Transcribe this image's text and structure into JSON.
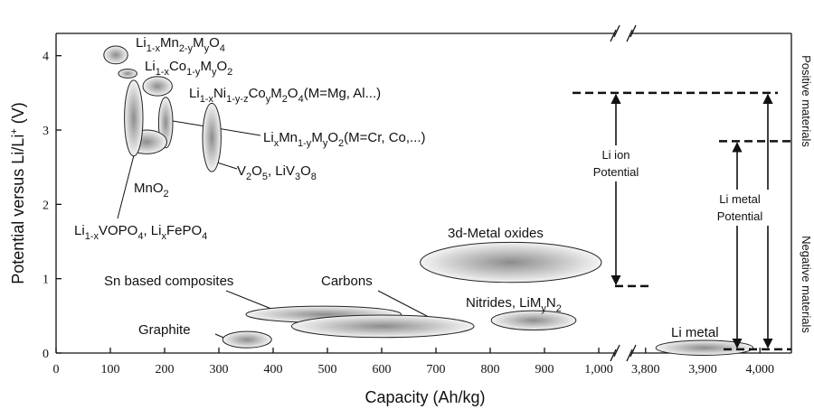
{
  "chart_data": {
    "type": "region-ellipse",
    "x_label": "Capacity (Ah/kg)",
    "y_label": [
      {
        "text": "Potential versus Li/Li"
      },
      {
        "sup": "+"
      },
      {
        "text": " (V)"
      }
    ],
    "side_labels": [
      "Positive materials",
      "Negative materials"
    ],
    "ylim": [
      0,
      4.3
    ],
    "yticks": [
      0,
      1,
      2,
      3,
      4
    ],
    "x_segments": [
      {
        "xlim": [
          0,
          1030
        ],
        "xticks": [
          0,
          100,
          200,
          300,
          400,
          500,
          600,
          700,
          800,
          900,
          {
            "value": 1000,
            "label": "1,000"
          }
        ]
      },
      {
        "xlim": [
          3775,
          4055
        ],
        "xticks": [
          {
            "value": 3800,
            "label": "3,800"
          },
          {
            "value": 3900,
            "label": "3,900"
          },
          {
            "value": 4000,
            "label": "4,000"
          }
        ]
      }
    ],
    "regions": [
      {
        "label": [
          {
            "text": "Li"
          },
          {
            "sub": "1-x"
          },
          {
            "text": "Mn"
          },
          {
            "sub": "2-y"
          },
          {
            "text": "M"
          },
          {
            "sub": "y"
          },
          {
            "text": "O"
          },
          {
            "sub": "4"
          }
        ],
        "x": 110,
        "y": 4.01,
        "x_width": 22,
        "y_height": 0.12
      },
      {
        "label": [
          {
            "text": "Li"
          },
          {
            "sub": "1-x"
          },
          {
            "text": "Co"
          },
          {
            "sub": "1-y"
          },
          {
            "text": "M"
          },
          {
            "sub": "y"
          },
          {
            "text": "O"
          },
          {
            "sub": "2"
          }
        ],
        "x": 132,
        "y": 3.76,
        "x_width": 17,
        "y_height": 0.06
      },
      {
        "label": [
          {
            "text": "Li"
          },
          {
            "sub": "1-x"
          },
          {
            "text": "Ni"
          },
          {
            "sub": "1-y-z"
          },
          {
            "text": "Co"
          },
          {
            "sub": "y"
          },
          {
            "text": "M"
          },
          {
            "sub": "2"
          },
          {
            "text": "O"
          },
          {
            "sub": "4"
          },
          {
            "text": "(M=Mg, Al...)"
          }
        ],
        "x": 187,
        "y": 3.59,
        "x_width": 27,
        "y_height": 0.13
      },
      {
        "label": [
          {
            "text": "Li"
          },
          {
            "sub": "x"
          },
          {
            "text": "Mn"
          },
          {
            "sub": "1-y"
          },
          {
            "text": "M"
          },
          {
            "sub": "y"
          },
          {
            "text": "O"
          },
          {
            "sub": "2"
          },
          {
            "text": "(M=Cr, Co,...)"
          }
        ],
        "x": 202,
        "y": 3.1,
        "x_width": 13,
        "y_height": 0.34
      },
      {
        "label": [
          {
            "text": "MnO"
          },
          {
            "sub": "2"
          }
        ],
        "x": 167,
        "y": 2.84,
        "x_width": 37,
        "y_height": 0.16
      },
      {
        "label": [
          {
            "text": "Li"
          },
          {
            "sub": "1-x"
          },
          {
            "text": "VOPO"
          },
          {
            "sub": "4"
          },
          {
            "text": ", Li"
          },
          {
            "sub": "x"
          },
          {
            "text": "FePO"
          },
          {
            "sub": "4"
          }
        ],
        "x": 143,
        "y": 3.16,
        "x_width": 17,
        "y_height": 0.51
      },
      {
        "label": [
          {
            "text": "V"
          },
          {
            "sub": "2"
          },
          {
            "text": "O"
          },
          {
            "sub": "5"
          },
          {
            "text": ", LiV"
          },
          {
            "sub": "3"
          },
          {
            "text": "O"
          },
          {
            "sub": "8"
          }
        ],
        "x": 287,
        "y": 2.9,
        "x_width": 17,
        "y_height": 0.46
      },
      {
        "label": [
          {
            "text": "3d-Metal oxides"
          }
        ],
        "x": 838,
        "y": 1.22,
        "x_width": 167,
        "y_height": 0.27
      },
      {
        "label": [
          {
            "text": "Sn based composites"
          }
        ],
        "x": 493,
        "y": 0.52,
        "x_width": 143,
        "y_height": 0.11
      },
      {
        "label": [
          {
            "text": "Carbons"
          }
        ],
        "x": 602,
        "y": 0.36,
        "x_width": 168,
        "y_height": 0.15
      },
      {
        "label": [
          {
            "text": "Nitrides, LiM"
          },
          {
            "sub": "y"
          },
          {
            "text": "N"
          },
          {
            "sub": "2"
          }
        ],
        "x": 880,
        "y": 0.44,
        "x_width": 78,
        "y_height": 0.13
      },
      {
        "label": [
          {
            "text": "Graphite"
          }
        ],
        "x": 352,
        "y": 0.18,
        "x_width": 45,
        "y_height": 0.11
      },
      {
        "label": [
          {
            "text": "Li metal"
          }
        ],
        "x": 3903,
        "y": 0.07,
        "x_width": 85,
        "y_height": 0.1
      }
    ],
    "potential_windows": [
      {
        "label": [
          "Li ion",
          "Potential"
        ],
        "high": 3.5,
        "low": 0.9
      },
      {
        "label": [
          "Li metal",
          "Potential"
        ],
        "high": 2.85,
        "low": 0.05
      }
    ]
  }
}
